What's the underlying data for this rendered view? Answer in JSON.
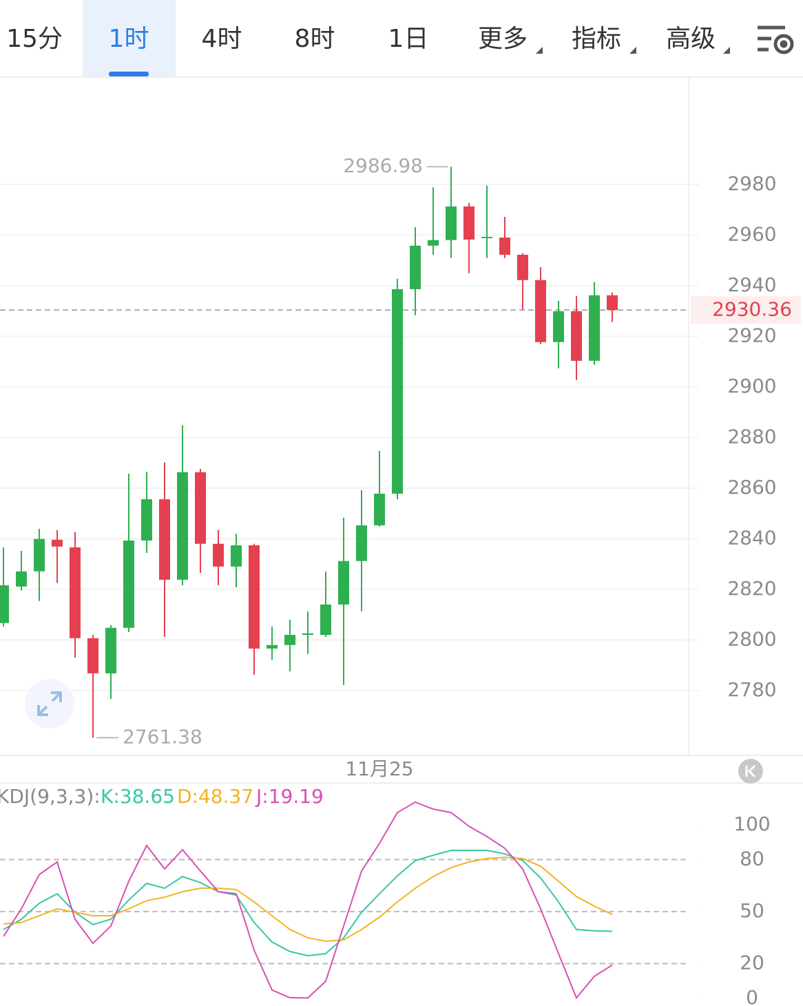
{
  "tabs": [
    "15分",
    "1时",
    "4时",
    "8时",
    "1日",
    "更多",
    "指标",
    "高级"
  ],
  "selected_tab": 1,
  "chart_data": [
    {
      "type": "candlestick",
      "categories": [
        null,
        null,
        null,
        null,
        null,
        null,
        null,
        null,
        null,
        null,
        null,
        null,
        null,
        null,
        null,
        null,
        null,
        null,
        null,
        null,
        null,
        "11月25",
        null,
        null,
        null,
        null,
        null,
        null,
        null,
        null,
        null,
        null,
        null,
        null,
        null
      ],
      "open": [
        2806.7,
        2821.1,
        2827.1,
        2839.6,
        2836.6,
        2800.7,
        2786.8,
        2804.8,
        2839.3,
        2855.6,
        2823.8,
        2866.3,
        2838.0,
        2829.0,
        2837.4,
        2796.6,
        2798.0,
        2802.0,
        2802.0,
        2814.0,
        2831.2,
        2845.3,
        2857.8,
        2938.6,
        2955.8,
        2958.0,
        2971.3,
        2958.8,
        2959.0,
        2952.2,
        2942.2,
        2917.7,
        2929.9,
        2910.3,
        2936.2
      ],
      "high": [
        2836.6,
        2835.2,
        2843.9,
        2843.4,
        2842.6,
        2802.0,
        2805.9,
        2865.7,
        2866.5,
        2870.1,
        2884.8,
        2867.6,
        2843.4,
        2842.0,
        2838.0,
        2805.3,
        2808.0,
        2811.3,
        2827.0,
        2848.3,
        2859.2,
        2874.7,
        2942.7,
        2963.1,
        2978.9,
        2986.98,
        2972.7,
        2979.5,
        2967.2,
        2952.8,
        2947.3,
        2934.0,
        2935.9,
        2941.4,
        2937.3
      ],
      "low": [
        2805.3,
        2819.5,
        2815.4,
        2822.5,
        2793.0,
        2761.38,
        2776.7,
        2803.1,
        2834.4,
        2801.2,
        2821.6,
        2826.5,
        2821.6,
        2820.8,
        2786.3,
        2792.2,
        2787.6,
        2794.4,
        2801.2,
        2782.2,
        2811.3,
        2844.8,
        2855.6,
        2928.3,
        2952.2,
        2950.9,
        2944.9,
        2950.9,
        2950.9,
        2930.5,
        2916.9,
        2907.3,
        2902.7,
        2908.7,
        2925.6
      ],
      "close": [
        2821.6,
        2827.1,
        2839.9,
        2836.9,
        2800.7,
        2786.8,
        2804.8,
        2839.3,
        2855.6,
        2823.8,
        2866.3,
        2838.0,
        2829.0,
        2837.4,
        2796.6,
        2798.0,
        2802.0,
        2802.6,
        2814.0,
        2831.2,
        2845.3,
        2857.8,
        2938.6,
        2955.8,
        2958.0,
        2971.3,
        2958.2,
        2959.3,
        2952.2,
        2942.2,
        2917.7,
        2929.9,
        2910.3,
        2936.2,
        2930.36
      ],
      "up_color": "#2eb050",
      "down_color": "#e5404f",
      "ylim": [
        2754.4,
        3022.4
      ],
      "yticks": [
        2780,
        2800,
        2820,
        2840,
        2860,
        2880,
        2900,
        2920,
        2940,
        2960,
        2980
      ],
      "grid": true,
      "high_label": 2986.98,
      "low_label": 2761.38,
      "last_price": 2930.36
    },
    {
      "type": "line",
      "title": "KDJ(9,3,3):",
      "series": [
        {
          "name": "K:38.65",
          "color": "#37c6a6",
          "values": [
            39.7,
            45.6,
            54.8,
            60.3,
            49.6,
            42.5,
            45.6,
            56.7,
            66.3,
            63.5,
            70.2,
            66.7,
            61.5,
            59.5,
            43.7,
            32.5,
            27.0,
            24.6,
            25.8,
            34.9,
            49.6,
            60.3,
            70.6,
            79.4,
            82.5,
            85.3,
            85.3,
            85.3,
            83.3,
            79.4,
            69.4,
            55.6,
            39.7,
            38.9,
            38.65
          ]
        },
        {
          "name": "D:48.37",
          "color": "#f0b323",
          "values": [
            42.9,
            43.7,
            47.6,
            51.6,
            49.6,
            47.6,
            47.6,
            51.6,
            56.3,
            58.3,
            61.5,
            63.5,
            63.5,
            62.7,
            55.6,
            47.6,
            39.7,
            34.9,
            32.9,
            33.7,
            39.7,
            46.8,
            55.6,
            63.5,
            70.2,
            75.4,
            78.6,
            80.6,
            81.3,
            80.6,
            76.2,
            67.5,
            58.7,
            53.2,
            48.37
          ]
        },
        {
          "name": "J:19.19",
          "color": "#d84fb4",
          "values": [
            35.7,
            51.6,
            71.4,
            78.6,
            45.6,
            31.7,
            41.7,
            67.5,
            88.1,
            74.6,
            85.7,
            73.4,
            61.5,
            60.3,
            27.8,
            4.8,
            0.4,
            0.2,
            9.9,
            41.7,
            73.4,
            89.3,
            107.1,
            113.1,
            109.1,
            107.1,
            99.2,
            93.3,
            86.5,
            74.6,
            51.6,
            25.8,
            0.3,
            12.7,
            19.19
          ]
        }
      ],
      "ylim": [
        -4.4,
        123
      ],
      "yticks": [
        0,
        20,
        50,
        80,
        100
      ],
      "reference_lines": [
        20,
        50,
        80
      ]
    }
  ]
}
